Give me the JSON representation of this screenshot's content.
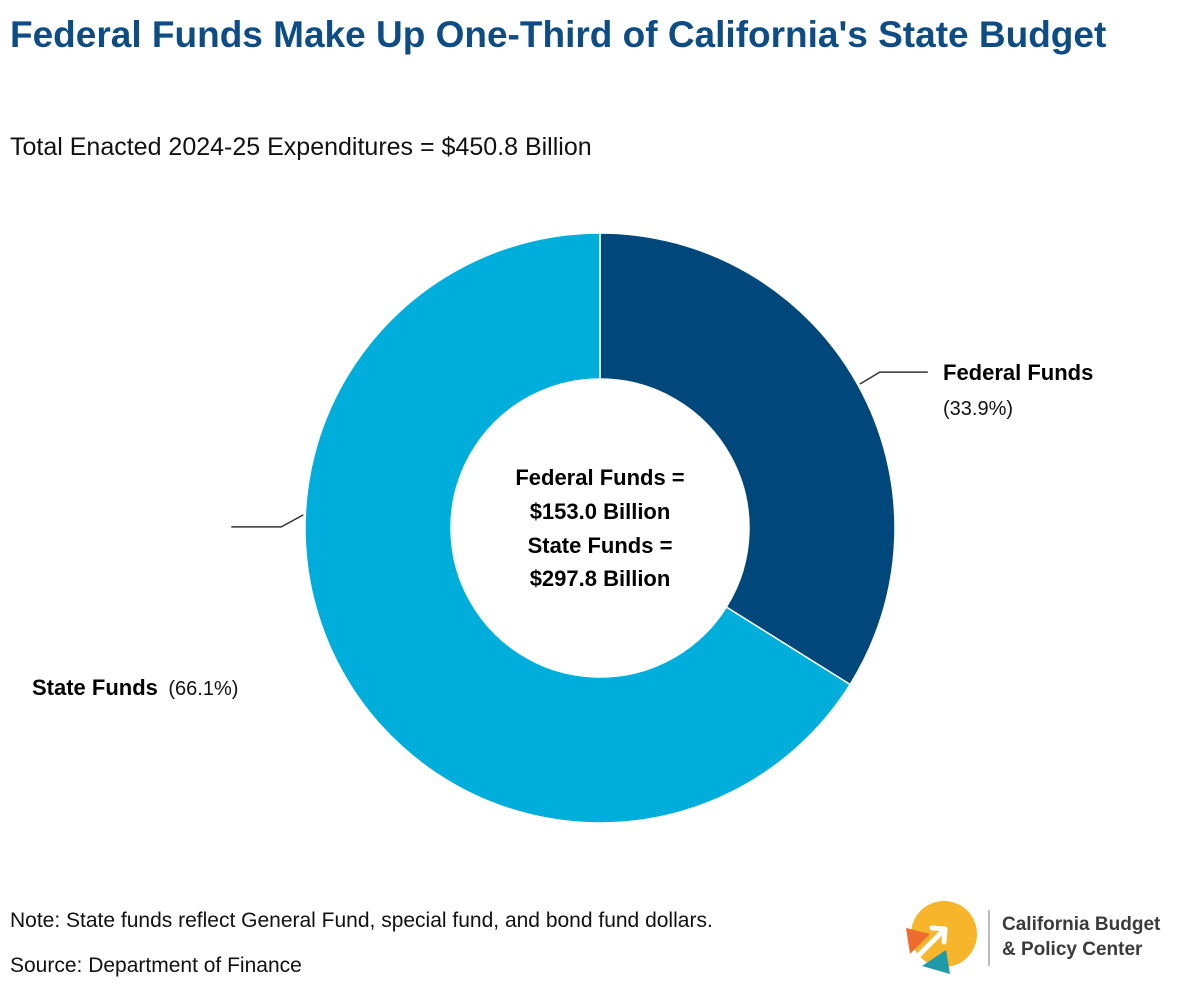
{
  "title": "Federal Funds Make Up One-Third of California's State Budget",
  "subtitle": "Total Enacted 2024-25 Expenditures = $450.8 Billion",
  "colors": {
    "title": "#0e4c86",
    "federal": "#00477c",
    "state": "#00aedb",
    "leader": "#333333"
  },
  "chart_data": {
    "type": "pie",
    "title": "Federal Funds Make Up One-Third of California's State Budget",
    "subtitle": "Total Enacted 2024-25 Expenditures = $450.8 Billion",
    "categories": [
      "Federal Funds",
      "State Funds"
    ],
    "values": [
      33.9,
      66.1
    ],
    "unit": "%",
    "amounts_billion": [
      153.0,
      297.8
    ],
    "slices": [
      {
        "name": "Federal Funds",
        "label": "Federal Funds",
        "pct_label": "(33.9%)",
        "value": 33.9,
        "color": "#00477c"
      },
      {
        "name": "State Funds",
        "label": "State Funds",
        "pct_label": "(66.1%)",
        "value": 66.1,
        "color": "#00aedb"
      }
    ],
    "center_lines": [
      "Federal Funds =",
      "$153.0 Billion",
      "State Funds =",
      "$297.8 Billion"
    ],
    "donut": true
  },
  "footer": {
    "note": "Note: State funds reflect General Fund, special fund, and bond fund dollars.",
    "source": "Source: Department of Finance"
  },
  "logo": {
    "line1": "California Budget",
    "line2": "& Policy Center",
    "colors": {
      "sun": "#f7b52c",
      "orange": "#ee6c2d",
      "teal": "#1f9aa8"
    }
  }
}
